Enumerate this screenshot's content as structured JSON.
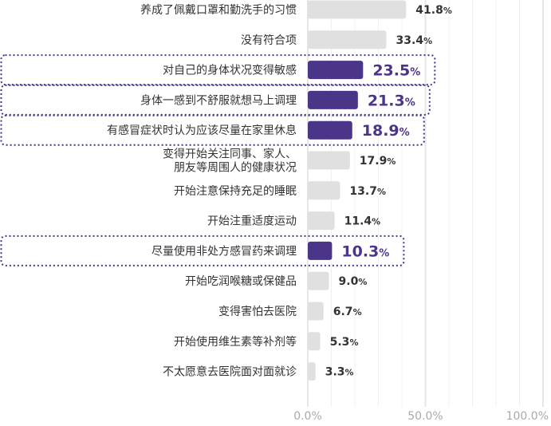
{
  "chart_data": {
    "type": "bar",
    "orientation": "horizontal",
    "unit": "%",
    "xlim": [
      0,
      100
    ],
    "grid": true,
    "x_ticks": [
      {
        "value": 0,
        "label": "0.0%"
      },
      {
        "value": 50,
        "label": "50.0%"
      },
      {
        "value": 100,
        "label": "100.0%"
      }
    ],
    "colors": {
      "normal": "#e0e0e0",
      "highlight": "#4b3589",
      "grid": "#e6e6e6",
      "highlight_border": "#4b3589"
    },
    "categories": [
      {
        "label_lines": [
          "养成了佩戴口罩和勤洗手的习惯"
        ],
        "value": 41.8,
        "highlight": false
      },
      {
        "label_lines": [
          "没有符合项"
        ],
        "value": 33.4,
        "highlight": false
      },
      {
        "label_lines": [
          "对自己的身体状况变得敏感"
        ],
        "value": 23.5,
        "highlight": true
      },
      {
        "label_lines": [
          "身体一感到不舒服就想马上调理"
        ],
        "value": 21.3,
        "highlight": true
      },
      {
        "label_lines": [
          "有感冒症状时认为应该尽量在家里休息"
        ],
        "value": 18.9,
        "highlight": true
      },
      {
        "label_lines": [
          "变得开始关注同事、家人、",
          "朋友等周围人的健康状况"
        ],
        "value": 17.9,
        "highlight": false
      },
      {
        "label_lines": [
          "开始注意保持充足的睡眠"
        ],
        "value": 13.7,
        "highlight": false
      },
      {
        "label_lines": [
          "开始注重适度运动"
        ],
        "value": 11.4,
        "highlight": false
      },
      {
        "label_lines": [
          "尽量使用非处方感冒药来调理"
        ],
        "value": 10.3,
        "highlight": true
      },
      {
        "label_lines": [
          "开始吃润喉糖或保健品"
        ],
        "value": 9.0,
        "highlight": false
      },
      {
        "label_lines": [
          "变得害怕去医院"
        ],
        "value": 6.7,
        "highlight": false
      },
      {
        "label_lines": [
          "开始使用维生素等补剂等"
        ],
        "value": 5.3,
        "highlight": false
      },
      {
        "label_lines": [
          "不太愿意去医院面对面就诊"
        ],
        "value": 3.3,
        "highlight": false
      }
    ]
  }
}
